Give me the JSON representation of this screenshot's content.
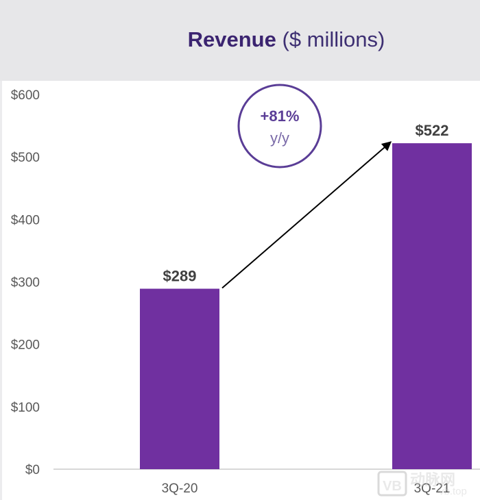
{
  "chart_data": {
    "type": "bar",
    "title": "Revenue",
    "title_suffix": "($ millions)",
    "xlabel": "",
    "ylabel": "",
    "categories": [
      "3Q-20",
      "3Q-21"
    ],
    "values": [
      289,
      522
    ],
    "data_labels": [
      "$289",
      "$522"
    ],
    "ylim": [
      0,
      600
    ],
    "yticks": [
      0,
      100,
      200,
      300,
      400,
      500,
      600
    ],
    "ytick_labels": [
      "$0",
      "$100",
      "$200",
      "$300",
      "$400",
      "$500",
      "$600"
    ],
    "grid": false,
    "legend": "none",
    "annotation": {
      "growth": "+81%",
      "period": "y/y",
      "arrow": "from 3Q-20 bar to 3Q-21 bar"
    },
    "colors": {
      "bar": "#7030a0",
      "title": "#3b2470",
      "badge_outline": "#5a3d96",
      "header_background": "#e7e7e9",
      "axis": "#bfbfbf",
      "tick_text": "#595959",
      "data_label_text": "#404040"
    }
  },
  "watermark": {
    "brand": "动脉网",
    "domain": "vb.top",
    "logo": "VB"
  }
}
